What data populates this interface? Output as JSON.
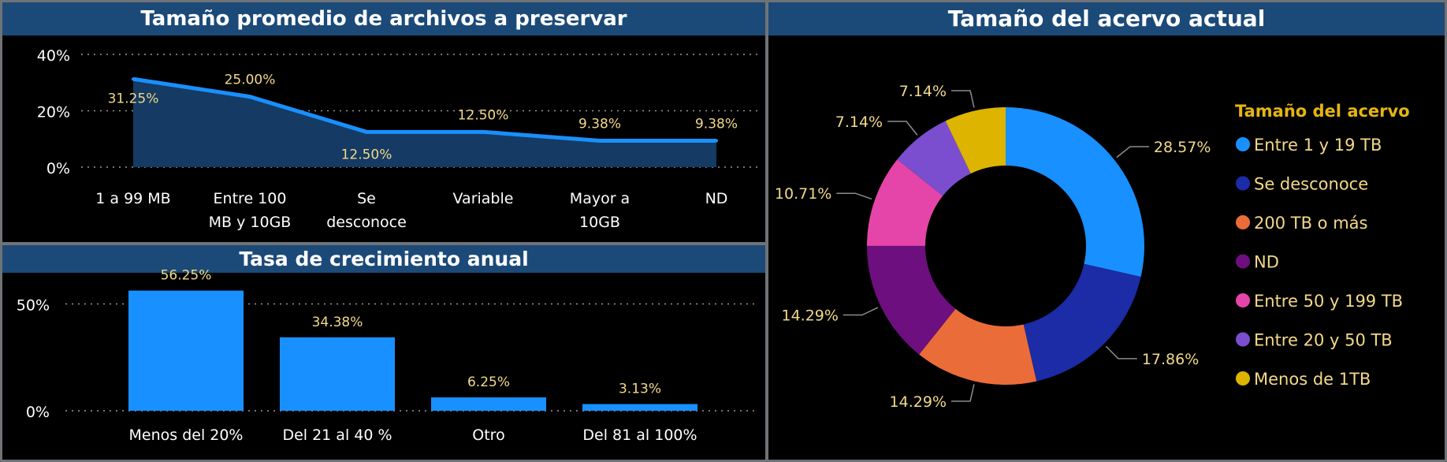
{
  "colors": {
    "title_bg": "#1c4a78",
    "line": "#1890ff",
    "area_fill": "#153a63",
    "bar": "#1890ff",
    "data_label": "#f3d989",
    "axis_text": "#ffffff",
    "legend_title": "#e6b511",
    "legend_text": "#f3d989"
  },
  "chart_data": [
    {
      "type": "area",
      "title": "Tamaño promedio de archivos a preservar",
      "categories": [
        [
          "1 a 99 MB"
        ],
        [
          "Entre 100",
          "MB y 10GB"
        ],
        [
          "Se",
          "desconoce"
        ],
        [
          "Variable"
        ],
        [
          "Mayor a",
          "10GB"
        ],
        [
          "ND"
        ]
      ],
      "values": [
        31.25,
        25.0,
        12.5,
        12.5,
        9.38,
        9.38
      ],
      "data_labels": [
        "31.25%",
        "25.00%",
        "12.50%",
        "12.50%",
        "9.38%",
        "9.38%"
      ],
      "y_ticks": [
        "0%",
        "20%",
        "40%"
      ],
      "ylim": [
        0,
        40
      ],
      "grid": true
    },
    {
      "type": "bar",
      "title": "Tasa de crecimiento anual",
      "categories": [
        "Menos del 20%",
        "Del 21 al 40 %",
        "Otro",
        "Del 81 al 100%"
      ],
      "values": [
        56.25,
        34.38,
        6.25,
        3.13
      ],
      "data_labels": [
        "56.25%",
        "34.38%",
        "6.25%",
        "3.13%"
      ],
      "y_ticks": [
        "0%",
        "50%"
      ],
      "ylim": [
        0,
        62
      ],
      "grid": true
    },
    {
      "type": "pie",
      "title": "Tamaño del acervo actual",
      "legend_title": "Tamaño del acervo",
      "legend_position": "right",
      "slices": [
        {
          "label": "Entre 1 y 19 TB",
          "value": 28.57,
          "display": "28.57%",
          "color": "#1890ff"
        },
        {
          "label": "Se desconoce",
          "value": 17.86,
          "display": "17.86%",
          "color": "#1c2ba6"
        },
        {
          "label": "200 TB o más",
          "value": 14.29,
          "display": "14.29%",
          "color": "#ea6d39"
        },
        {
          "label": "ND",
          "value": 14.29,
          "display": "14.29%",
          "color": "#6d0f7e"
        },
        {
          "label": "Entre 50 y 199 TB",
          "value": 10.71,
          "display": "10.71%",
          "color": "#e545a8"
        },
        {
          "label": "Entre 20 y 50 TB",
          "value": 7.14,
          "display": "7.14%",
          "color": "#7b4ed0"
        },
        {
          "label": "Menos de 1TB",
          "value": 7.14,
          "display": "7.14%",
          "color": "#ddb400"
        }
      ]
    }
  ]
}
